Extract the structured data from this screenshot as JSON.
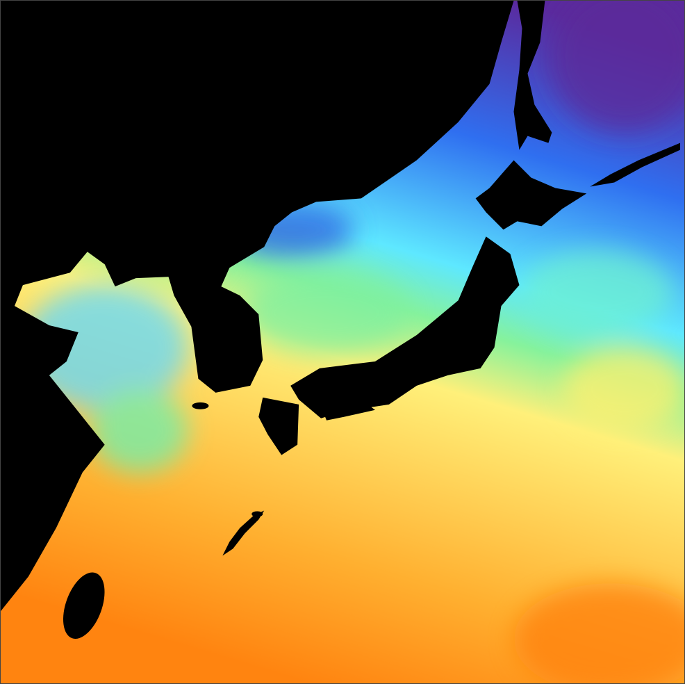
{
  "map": {
    "type": "sea-surface-temperature",
    "land_color": "#000000",
    "palette": {
      "coldest": "#5a2a9e",
      "cold": "#2f6ff0",
      "cool": "#5ee8ff",
      "mild": "#86f29c",
      "warm": "#fff07a",
      "hot": "#ffb030",
      "hottest": "#ff8410"
    }
  }
}
